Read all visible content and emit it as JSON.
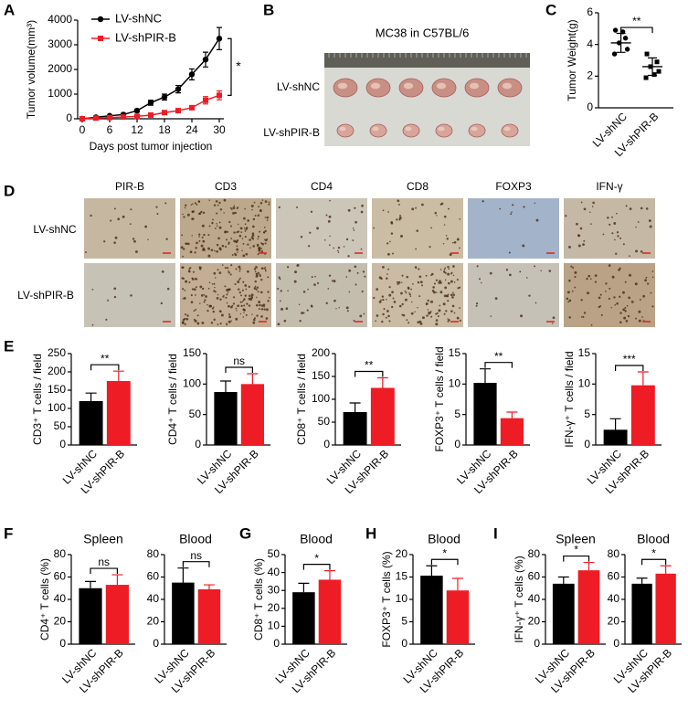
{
  "chart_data": [
    {
      "type": "line",
      "panel": "A",
      "ylabel": "Tumor volume(mm³)",
      "xlabel": "Days post tumor injection",
      "x": [
        0,
        3,
        6,
        9,
        12,
        15,
        18,
        21,
        24,
        27,
        30
      ],
      "series": [
        {
          "name": "LV-shNC",
          "color": "#000000",
          "marker": "circle",
          "values": [
            0,
            60,
            120,
            170,
            330,
            650,
            880,
            1200,
            1800,
            2400,
            3250
          ],
          "errors": [
            0,
            20,
            30,
            40,
            60,
            100,
            120,
            150,
            220,
            300,
            450
          ]
        },
        {
          "name": "LV-shPIR-B",
          "color": "#ee1c25",
          "marker": "square",
          "values": [
            0,
            30,
            50,
            70,
            100,
            150,
            250,
            330,
            450,
            750,
            950
          ],
          "errors": [
            0,
            10,
            15,
            20,
            20,
            30,
            40,
            60,
            80,
            150,
            180
          ]
        }
      ],
      "xlim": [
        -1,
        31
      ],
      "xticks": [
        0,
        6,
        12,
        18,
        24,
        30
      ],
      "ylim": [
        0,
        4000
      ],
      "yticks": [
        0,
        1000,
        2000,
        3000,
        4000
      ],
      "legend": "upper left",
      "annotation": "*"
    },
    {
      "type": "dot",
      "panel": "C",
      "ylabel": "Tumor Weight(g)",
      "categories": [
        "LV-shNC",
        "LV-shPIR-B"
      ],
      "points": [
        [
          4.9,
          4.4,
          4.1,
          3.7,
          3.4,
          4.8
        ],
        [
          3.4,
          2.9,
          2.6,
          2.3,
          1.9,
          2.1
        ]
      ],
      "mean": [
        4.1,
        2.6
      ],
      "sd": [
        0.6,
        0.55
      ],
      "colors": [
        "#000000",
        "#000000"
      ],
      "ylim": [
        0,
        6
      ],
      "yticks": [
        0,
        2,
        4,
        6
      ],
      "annotation": "**"
    },
    {
      "type": "bar",
      "panel": "E",
      "ylabel": "CD3⁺ T cells / field",
      "categories": [
        "LV-shNC",
        "LV-shPIR-B"
      ],
      "values": [
        120,
        175
      ],
      "errors": [
        22,
        27
      ],
      "colors": [
        "#000000",
        "#ee1c25"
      ],
      "ylim": [
        0,
        250
      ],
      "yticks": [
        0,
        50,
        100,
        150,
        200,
        250
      ],
      "annotation": "**"
    },
    {
      "type": "bar",
      "ylabel": "CD4⁺ T cells / field",
      "categories": [
        "LV-shNC",
        "LV-shPIR-B"
      ],
      "values": [
        87,
        100
      ],
      "errors": [
        18,
        17
      ],
      "colors": [
        "#000000",
        "#ee1c25"
      ],
      "ylim": [
        0,
        150
      ],
      "yticks": [
        0,
        50,
        100,
        150
      ],
      "annotation": "ns"
    },
    {
      "type": "bar",
      "ylabel": "CD8⁺ T cells / field",
      "categories": [
        "LV-shNC",
        "LV-shPIR-B"
      ],
      "values": [
        72,
        125
      ],
      "errors": [
        20,
        22
      ],
      "colors": [
        "#000000",
        "#ee1c25"
      ],
      "ylim": [
        0,
        200
      ],
      "yticks": [
        0,
        50,
        100,
        150,
        200
      ],
      "annotation": "**"
    },
    {
      "type": "bar",
      "ylabel": "FOXP3⁺ T cells / field",
      "categories": [
        "LV-shNC",
        "LV-shPIR-B"
      ],
      "values": [
        10.2,
        4.4
      ],
      "errors": [
        2.3,
        1.0
      ],
      "colors": [
        "#000000",
        "#ee1c25"
      ],
      "ylim": [
        0,
        15
      ],
      "yticks": [
        0,
        5,
        10,
        15
      ],
      "annotation": "**"
    },
    {
      "type": "bar",
      "ylabel": "IFN-γ⁺ T cells / field",
      "categories": [
        "LV-shNC",
        "LV-shPIR-B"
      ],
      "values": [
        2.5,
        9.8
      ],
      "errors": [
        1.8,
        2.2
      ],
      "colors": [
        "#000000",
        "#ee1c25"
      ],
      "ylim": [
        0,
        15
      ],
      "yticks": [
        0,
        5,
        10,
        15
      ],
      "annotation": "***"
    },
    {
      "type": "bar",
      "panel": "F",
      "title": "Spleen",
      "ylabel": "CD4⁺ T cells (%)",
      "categories": [
        "LV-shNC",
        "LV-shPIR-B"
      ],
      "values": [
        50,
        53
      ],
      "errors": [
        6,
        9
      ],
      "colors": [
        "#000000",
        "#ee1c25"
      ],
      "ylim": [
        0,
        80
      ],
      "yticks": [
        0,
        20,
        40,
        60,
        80
      ],
      "annotation": "ns"
    },
    {
      "type": "bar",
      "title": "Blood",
      "categories": [
        "LV-shNC",
        "LV-shPIR-B"
      ],
      "values": [
        55,
        49
      ],
      "errors": [
        13,
        4
      ],
      "colors": [
        "#000000",
        "#ee1c25"
      ],
      "ylim": [
        0,
        80
      ],
      "yticks": [
        0,
        20,
        40,
        60,
        80
      ],
      "annotation": "ns"
    },
    {
      "type": "bar",
      "panel": "G",
      "title": "Blood",
      "ylabel": "CD8⁺ T cells (%)",
      "categories": [
        "LV-shNC",
        "LV-shPIR-B"
      ],
      "values": [
        29,
        36
      ],
      "errors": [
        5,
        5
      ],
      "colors": [
        "#000000",
        "#ee1c25"
      ],
      "ylim": [
        0,
        50
      ],
      "yticks": [
        0,
        10,
        20,
        30,
        40,
        50
      ],
      "annotation": "*"
    },
    {
      "type": "bar",
      "panel": "H",
      "title": "Blood",
      "ylabel": "FOXP3⁺ T cells (%)",
      "categories": [
        "LV-shNC",
        "LV-shPIR-B"
      ],
      "values": [
        15.3,
        12
      ],
      "errors": [
        2.2,
        2.7
      ],
      "colors": [
        "#000000",
        "#ee1c25"
      ],
      "ylim": [
        0,
        20
      ],
      "yticks": [
        0,
        5,
        10,
        15,
        20
      ],
      "annotation": "*"
    },
    {
      "type": "bar",
      "panel": "I",
      "title": "Spleen",
      "ylabel": "IFN-γ⁺ T cells (%)",
      "categories": [
        "LV-shNC",
        "LV-shPIR-B"
      ],
      "values": [
        54,
        66
      ],
      "errors": [
        6,
        7
      ],
      "colors": [
        "#000000",
        "#ee1c25"
      ],
      "ylim": [
        0,
        80
      ],
      "yticks": [
        0,
        20,
        40,
        60,
        80
      ],
      "annotation": "*"
    },
    {
      "type": "bar",
      "title": "Blood",
      "categories": [
        "LV-shNC",
        "LV-shPIR-B"
      ],
      "values": [
        54,
        63
      ],
      "errors": [
        5,
        7
      ],
      "colors": [
        "#000000",
        "#ee1c25"
      ],
      "ylim": [
        0,
        80
      ],
      "yticks": [
        0,
        20,
        40,
        60,
        80
      ],
      "annotation": "*"
    }
  ],
  "panel_b": {
    "letter": "B",
    "title": "MC38 in C57BL/6",
    "rows": [
      "LV-shNC",
      "LV-shPIR-B"
    ]
  },
  "panel_d": {
    "letter": "D",
    "columns": [
      "PIR-B",
      "CD3",
      "CD4",
      "CD8",
      "FOXP3",
      "IFN-γ"
    ],
    "rows": [
      "LV-shNC",
      "LV-shPIR-B"
    ]
  }
}
